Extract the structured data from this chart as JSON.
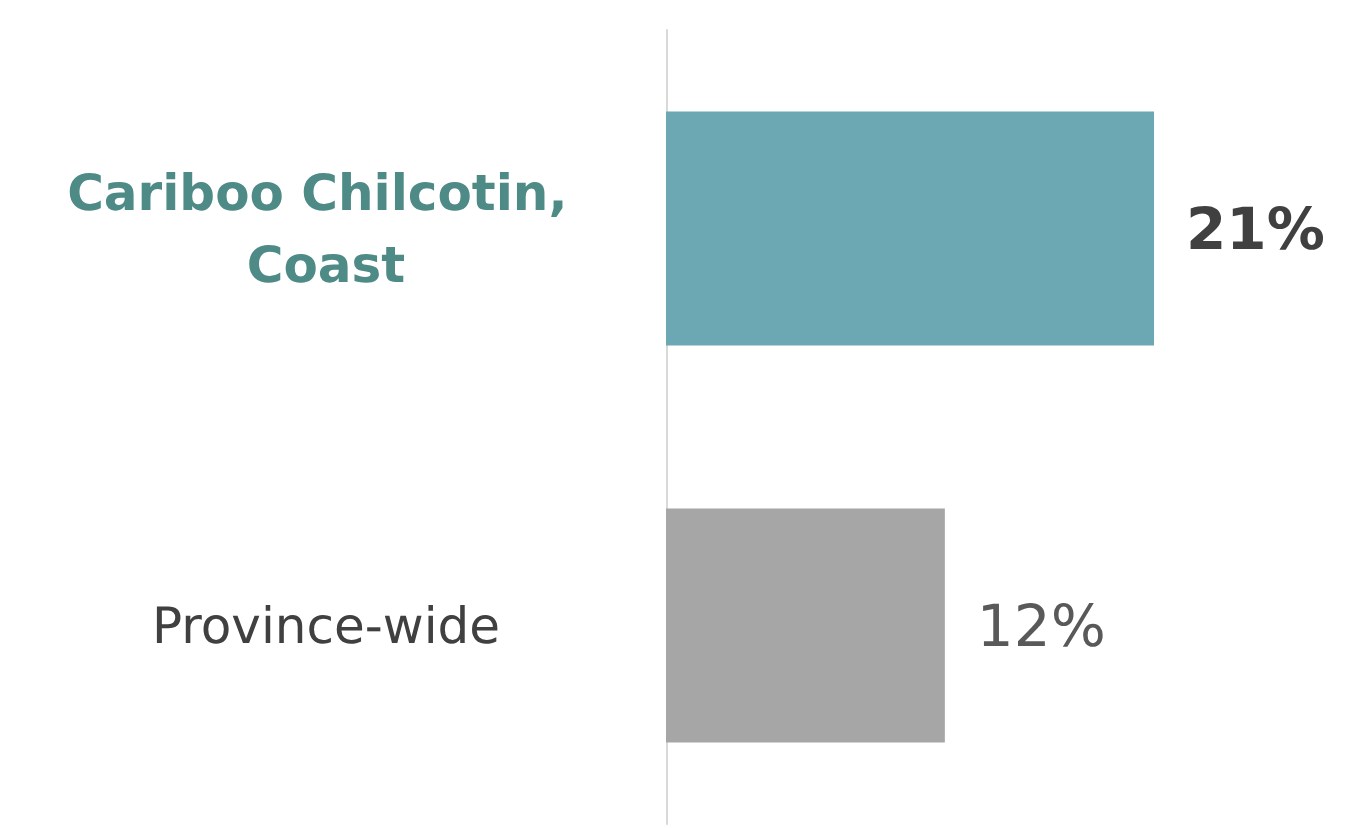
{
  "chart_data": {
    "type": "bar",
    "orientation": "horizontal",
    "categories": [
      "Cariboo Chilcotin, Coast",
      "Province-wide"
    ],
    "values": [
      21,
      12
    ],
    "colors": [
      "#6ba8b3",
      "#a6a6a6"
    ],
    "value_labels": [
      "21%",
      "12%"
    ]
  }
}
